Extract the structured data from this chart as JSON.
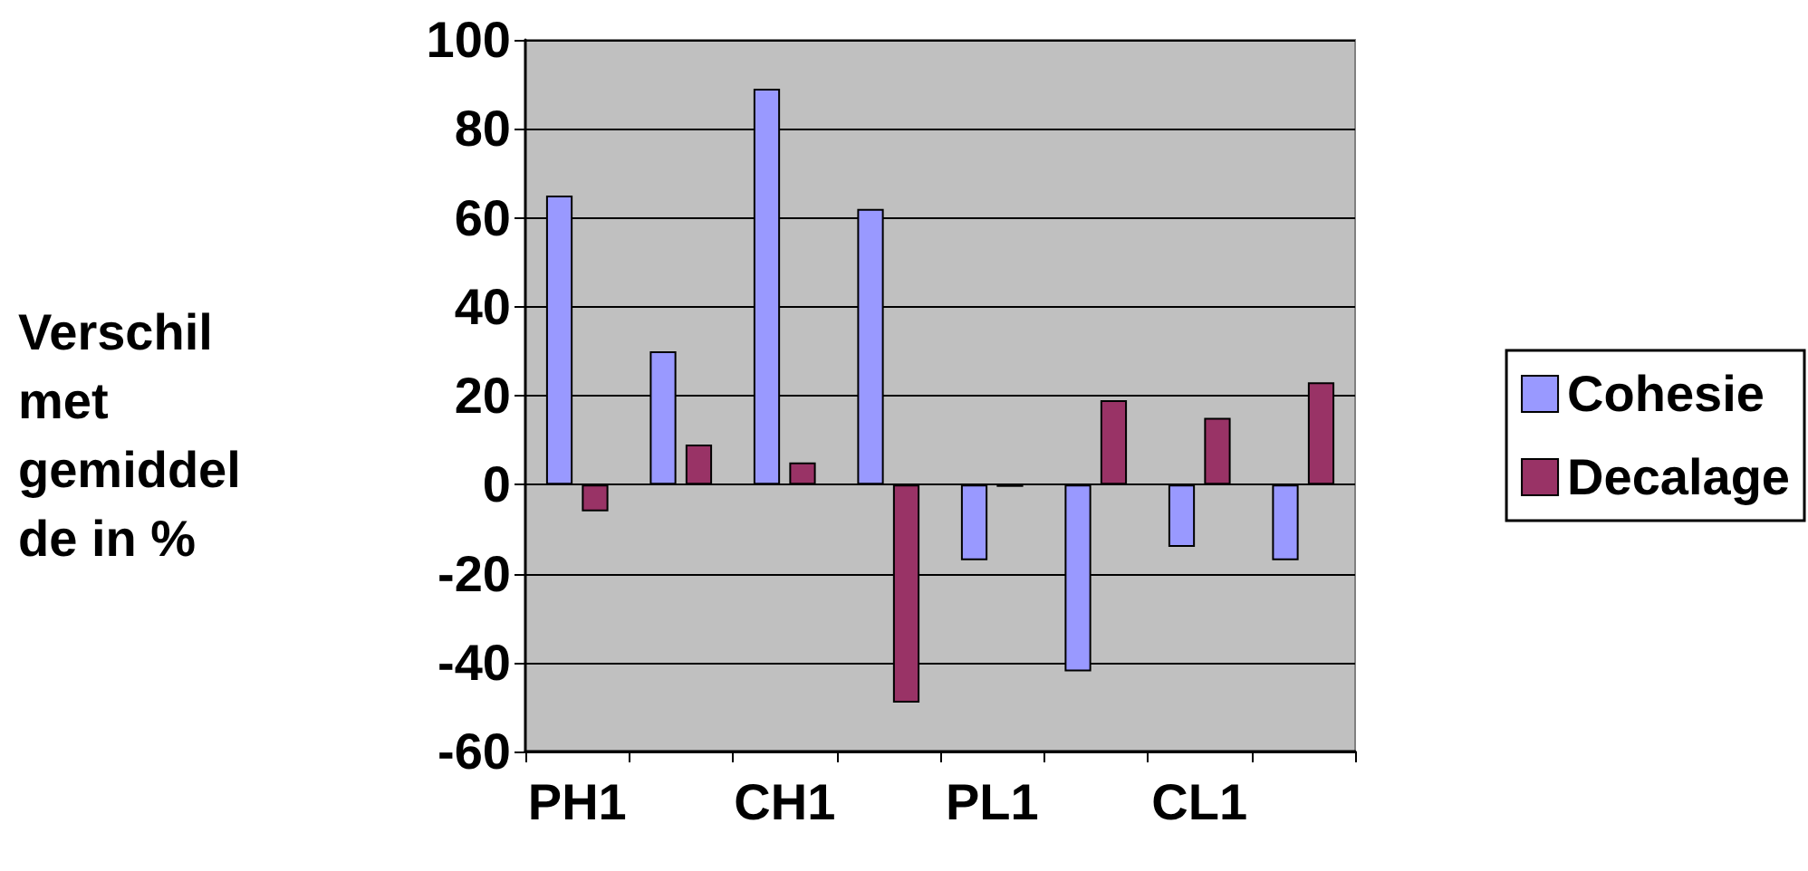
{
  "chart_data": {
    "type": "bar",
    "ylabel": "Verschil\nmet\ngemiddel\nde in %",
    "categories": [
      "PH1",
      null,
      "CH1",
      null,
      "PL1",
      null,
      "CL1",
      null
    ],
    "series": [
      {
        "name": "Cohesie",
        "color": "#9999ff",
        "values": [
          65,
          30,
          89,
          62,
          -17,
          -42,
          -14,
          -17
        ]
      },
      {
        "name": "Decalage",
        "color": "#993366",
        "values": [
          -6,
          9,
          5,
          -49,
          -0.5,
          19,
          15,
          23
        ]
      }
    ],
    "ylim": [
      -60,
      100
    ],
    "yticks": [
      -60,
      -40,
      -20,
      0,
      20,
      40,
      60,
      80,
      100
    ],
    "grid": "y",
    "legend": "right"
  }
}
